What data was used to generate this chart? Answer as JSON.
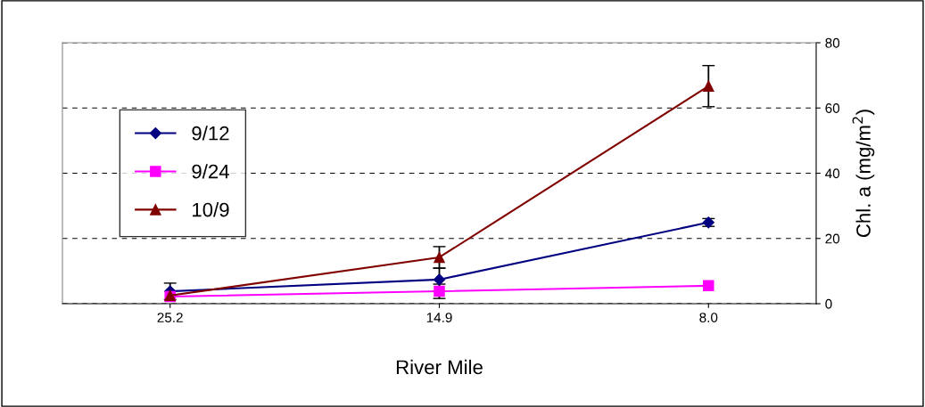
{
  "chart_data": {
    "type": "line",
    "xlabel": "River Mile",
    "ylabel": "Chl. a (mg/m$^{2}$)",
    "categories": [
      "25.2",
      "14.9",
      "8.0"
    ],
    "series": [
      {
        "name": "9/12",
        "color": "#000080",
        "marker": "diamond",
        "values": [
          3.8,
          7.4,
          24.9
        ],
        "errors": [
          2.5,
          3.5,
          1.2
        ]
      },
      {
        "name": "9/24",
        "color": "#ff00ff",
        "marker": "square",
        "values": [
          2.2,
          3.8,
          5.5
        ],
        "errors": [
          null,
          2.2,
          null
        ]
      },
      {
        "name": "10/9",
        "color": "#800000",
        "marker": "triangle",
        "values": [
          2.5,
          14.2,
          66.7
        ],
        "errors": [
          null,
          3.3,
          6.3
        ]
      }
    ],
    "ylim": [
      0,
      80
    ],
    "yticks": [
      0,
      20,
      40,
      60,
      80
    ],
    "grid": "y",
    "legend": "left",
    "line_style": "solid"
  }
}
